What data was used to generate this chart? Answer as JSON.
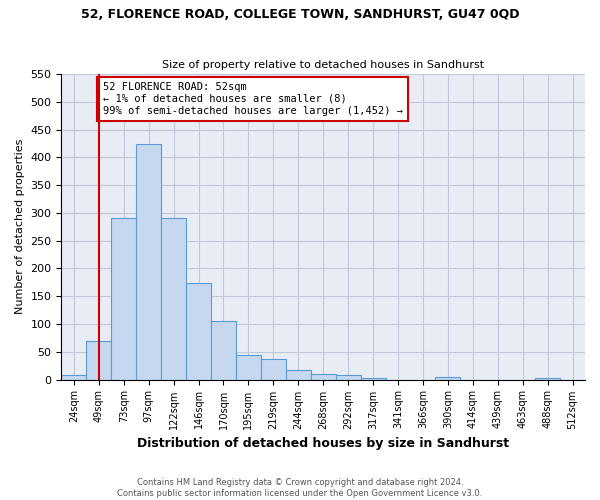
{
  "title": "52, FLORENCE ROAD, COLLEGE TOWN, SANDHURST, GU47 0QD",
  "subtitle": "Size of property relative to detached houses in Sandhurst",
  "xlabel": "Distribution of detached houses by size in Sandhurst",
  "ylabel": "Number of detached properties",
  "footer_line1": "Contains HM Land Registry data © Crown copyright and database right 2024.",
  "footer_line2": "Contains public sector information licensed under the Open Government Licence v3.0.",
  "bin_labels": [
    "24sqm",
    "49sqm",
    "73sqm",
    "97sqm",
    "122sqm",
    "146sqm",
    "170sqm",
    "195sqm",
    "219sqm",
    "244sqm",
    "268sqm",
    "292sqm",
    "317sqm",
    "341sqm",
    "366sqm",
    "390sqm",
    "414sqm",
    "439sqm",
    "463sqm",
    "488sqm",
    "512sqm"
  ],
  "bar_heights": [
    8,
    70,
    291,
    424,
    291,
    174,
    105,
    44,
    37,
    18,
    10,
    8,
    3,
    0,
    0,
    4,
    0,
    0,
    0,
    3,
    0
  ],
  "bar_color": "#c5d8f0",
  "bar_edge_color": "#5b9bd5",
  "vline_color": "#cc0000",
  "annotation_text": "52 FLORENCE ROAD: 52sqm\n← 1% of detached houses are smaller (8)\n99% of semi-detached houses are larger (1,452) →",
  "annotation_box_color": "#cc0000",
  "ylim": [
    0,
    550
  ],
  "yticks": [
    0,
    50,
    100,
    150,
    200,
    250,
    300,
    350,
    400,
    450,
    500,
    550
  ],
  "grid_color": "#c0c8d8",
  "background_color": "#e8edf5"
}
